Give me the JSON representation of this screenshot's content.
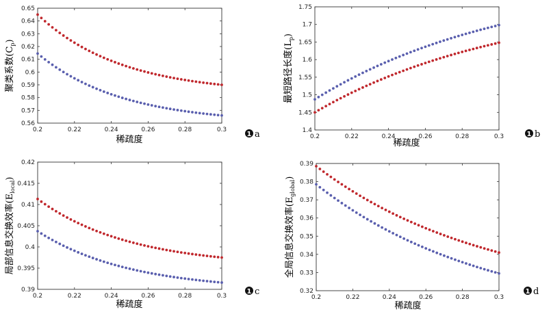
{
  "chart_data": [
    {
      "panel_label": "a",
      "type": "scatter",
      "xlabel": "稀疏度",
      "ylabel": "聚类系数",
      "ylabel_sym": "(C",
      "ylabel_sub": "p",
      "ylabel_close": ")",
      "xlim": [
        0.2,
        0.3
      ],
      "ylim": [
        0.56,
        0.65
      ],
      "xticks": [
        "0.2",
        "0.22",
        "0.24",
        "0.26",
        "0.28",
        "0.3"
      ],
      "yticks": [
        "0.56",
        "0.57",
        "0.58",
        "0.59",
        "0.6",
        "0.61",
        "0.62",
        "0.63",
        "0.64",
        "0.65"
      ],
      "series": [
        {
          "name": "red",
          "color": "#c0282d",
          "start": 0.645,
          "end": 0.59,
          "curve": 2.2,
          "points": 51
        },
        {
          "name": "blue",
          "color": "#5a5fae",
          "start": 0.6145,
          "end": 0.566,
          "curve": 2.2,
          "points": 51
        }
      ]
    },
    {
      "panel_label": "b",
      "type": "scatter",
      "xlabel": "稀疏度",
      "ylabel": "最短路径长度",
      "ylabel_sym": "(L",
      "ylabel_sub": "p",
      "ylabel_close": ")",
      "xlim": [
        0.2,
        0.3
      ],
      "ylim": [
        1.4,
        1.75
      ],
      "xticks": [
        "0.2",
        "0.22",
        "0.24",
        "0.26",
        "0.28",
        "0.3"
      ],
      "yticks": [
        "1.4",
        "1.45",
        "1.5",
        "1.55",
        "1.6",
        "1.65",
        "1.7",
        "1.75"
      ],
      "series": [
        {
          "name": "blue",
          "color": "#5a5fae",
          "start": 1.487,
          "end": 1.698,
          "curve": 0.95,
          "points": 51
        },
        {
          "name": "red",
          "color": "#c0282d",
          "start": 1.45,
          "end": 1.648,
          "curve": 0.95,
          "points": 51
        }
      ]
    },
    {
      "panel_label": "c",
      "type": "scatter",
      "xlabel": "稀疏度",
      "ylabel": "局部信息交换效率",
      "ylabel_sym": "(E",
      "ylabel_sub": "local",
      "ylabel_close": ")",
      "xlim": [
        0.2,
        0.3
      ],
      "ylim": [
        0.39,
        0.42
      ],
      "xticks": [
        "0.2",
        "0.22",
        "0.24",
        "0.26",
        "0.28",
        "0.3"
      ],
      "yticks": [
        "0.39",
        "0.395",
        "0.4",
        "0.405",
        "0.41",
        "0.415",
        "0.42"
      ],
      "series": [
        {
          "name": "red",
          "color": "#c0282d",
          "start": 0.4113,
          "end": 0.3975,
          "curve": 2.0,
          "points": 51
        },
        {
          "name": "blue",
          "color": "#5a5fae",
          "start": 0.4037,
          "end": 0.3916,
          "curve": 2.0,
          "points": 51
        }
      ]
    },
    {
      "panel_label": "d",
      "type": "scatter",
      "xlabel": "稀疏度",
      "ylabel": "全局信息交换效率",
      "ylabel_sym": "(E",
      "ylabel_sub": "global",
      "ylabel_close": ")",
      "xlim": [
        0.2,
        0.3
      ],
      "ylim": [
        0.32,
        0.39
      ],
      "xticks": [
        "0.2",
        "0.22",
        "0.24",
        "0.26",
        "0.28",
        "0.3"
      ],
      "yticks": [
        "0.32",
        "0.33",
        "0.34",
        "0.35",
        "0.36",
        "0.37",
        "0.38",
        "0.39"
      ],
      "series": [
        {
          "name": "red",
          "color": "#c0282d",
          "start": 0.3885,
          "end": 0.341,
          "curve": 1.05,
          "points": 51
        },
        {
          "name": "blue",
          "color": "#5a5fae",
          "start": 0.3785,
          "end": 0.3295,
          "curve": 1.05,
          "points": 51
        }
      ]
    }
  ]
}
